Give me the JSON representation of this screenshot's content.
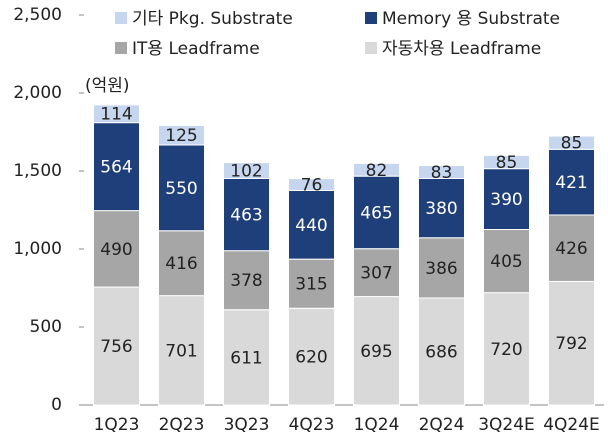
{
  "chart_data": {
    "type": "stacked_bar",
    "unit_label": "(억원)",
    "categories": [
      "1Q23",
      "2Q23",
      "3Q23",
      "4Q23",
      "1Q24",
      "2Q24",
      "3Q24E",
      "4Q24E"
    ],
    "series": [
      {
        "name": "자동차용 Leadframe",
        "color": "#d9d9d9",
        "values": [
          756,
          701,
          611,
          620,
          695,
          686,
          720,
          792
        ]
      },
      {
        "name": "IT용 Leadframe",
        "color": "#a6a6a6",
        "values": [
          490,
          416,
          378,
          315,
          307,
          386,
          405,
          426
        ]
      },
      {
        "name": "Memory 용 Substrate",
        "color": "#1f3f7a",
        "values": [
          564,
          550,
          463,
          440,
          465,
          380,
          390,
          421
        ]
      },
      {
        "name": "기타 Pkg. Substrate",
        "color": "#c6d6ef",
        "values": [
          114,
          125,
          102,
          76,
          82,
          83,
          85,
          85
        ]
      }
    ],
    "ylim": [
      0,
      2500
    ],
    "yticks": [
      0,
      {
        "value": 500,
        "label": "500"
      },
      {
        "value": 1000,
        "label": "1,000"
      },
      {
        "value": 1500,
        "label": "1,500"
      },
      {
        "value": 2000,
        "label": "2,000"
      },
      {
        "value": 2500,
        "label": "2,500"
      }
    ]
  }
}
